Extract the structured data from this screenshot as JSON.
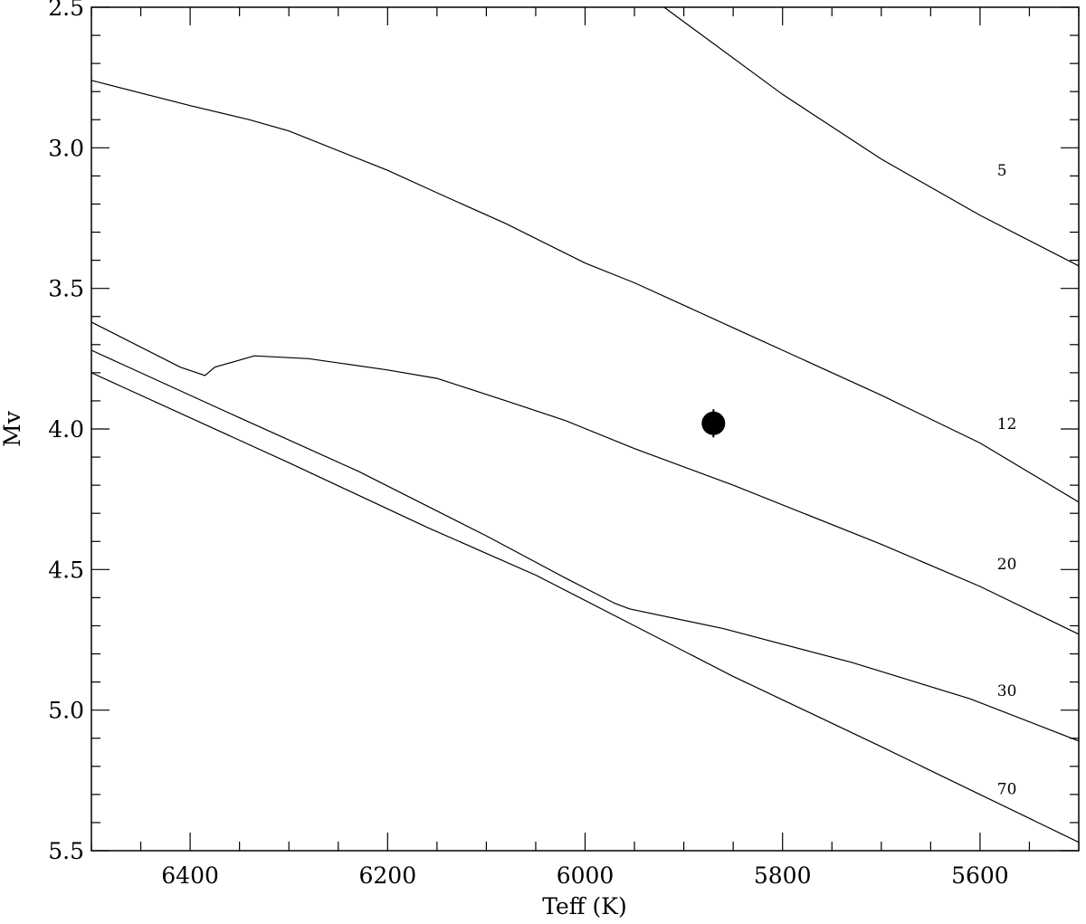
{
  "chart_data": {
    "type": "line",
    "title": "",
    "xlabel": "Teff (K)",
    "ylabel": "Mv",
    "xlim": [
      6500,
      5500
    ],
    "ylim": [
      2.5,
      5.5
    ],
    "y_inverted": true,
    "x_ticks": [
      6400,
      6200,
      6000,
      5800,
      5600
    ],
    "x_tick_labels": [
      "6400",
      "6200",
      "6000",
      "5800",
      "5600"
    ],
    "y_ticks": [
      2.5,
      3.0,
      3.5,
      4.0,
      4.5,
      5.0,
      5.5
    ],
    "y_tick_labels": [
      "2.5",
      "3.0",
      "3.5",
      "4.0",
      "4.5",
      "5.0",
      "5.5"
    ],
    "grid": false,
    "series": [
      {
        "name": "5",
        "x": [
          5920,
          5800,
          5700,
          5600,
          5500
        ],
        "y": [
          2.5,
          2.81,
          3.04,
          3.24,
          3.42
        ]
      },
      {
        "name": "12",
        "x": [
          6500,
          6400,
          6340,
          6300,
          6200,
          6150,
          6080,
          6000,
          5950,
          5900,
          5850,
          5800,
          5700,
          5600,
          5500
        ],
        "y": [
          2.76,
          2.85,
          2.9,
          2.94,
          3.08,
          3.16,
          3.27,
          3.41,
          3.48,
          3.56,
          3.64,
          3.72,
          3.88,
          4.05,
          4.26
        ]
      },
      {
        "name": "20",
        "x": [
          6500,
          6410,
          6385,
          6375,
          6335,
          6280,
          6200,
          6150,
          6080,
          6020,
          5950,
          5850,
          5700,
          5600,
          5500
        ],
        "y": [
          3.62,
          3.78,
          3.81,
          3.78,
          3.74,
          3.75,
          3.79,
          3.82,
          3.9,
          3.97,
          4.07,
          4.2,
          4.41,
          4.56,
          4.73
        ]
      },
      {
        "name": "30",
        "x": [
          6500,
          6350,
          6230,
          6100,
          6020,
          5970,
          5955,
          5860,
          5730,
          5610,
          5500
        ],
        "y": [
          3.72,
          3.96,
          4.15,
          4.38,
          4.53,
          4.62,
          4.64,
          4.71,
          4.83,
          4.96,
          5.11
        ]
      },
      {
        "name": "70",
        "x": [
          6500,
          6300,
          6160,
          6050,
          5950,
          5850,
          5700,
          5600,
          5500
        ],
        "y": [
          3.8,
          4.12,
          4.35,
          4.52,
          4.7,
          4.88,
          5.13,
          5.3,
          5.47
        ]
      }
    ],
    "point": {
      "x": 5870,
      "y": 3.98,
      "yerr": 0.05
    },
    "annotations": [
      {
        "text": "5",
        "x": 5590,
        "y": 3.08
      },
      {
        "text": "12",
        "x": 5590,
        "y": 3.98
      },
      {
        "text": "20",
        "x": 5590,
        "y": 4.48
      },
      {
        "text": "30",
        "x": 5590,
        "y": 4.93
      },
      {
        "text": "70",
        "x": 5590,
        "y": 5.28
      }
    ]
  }
}
